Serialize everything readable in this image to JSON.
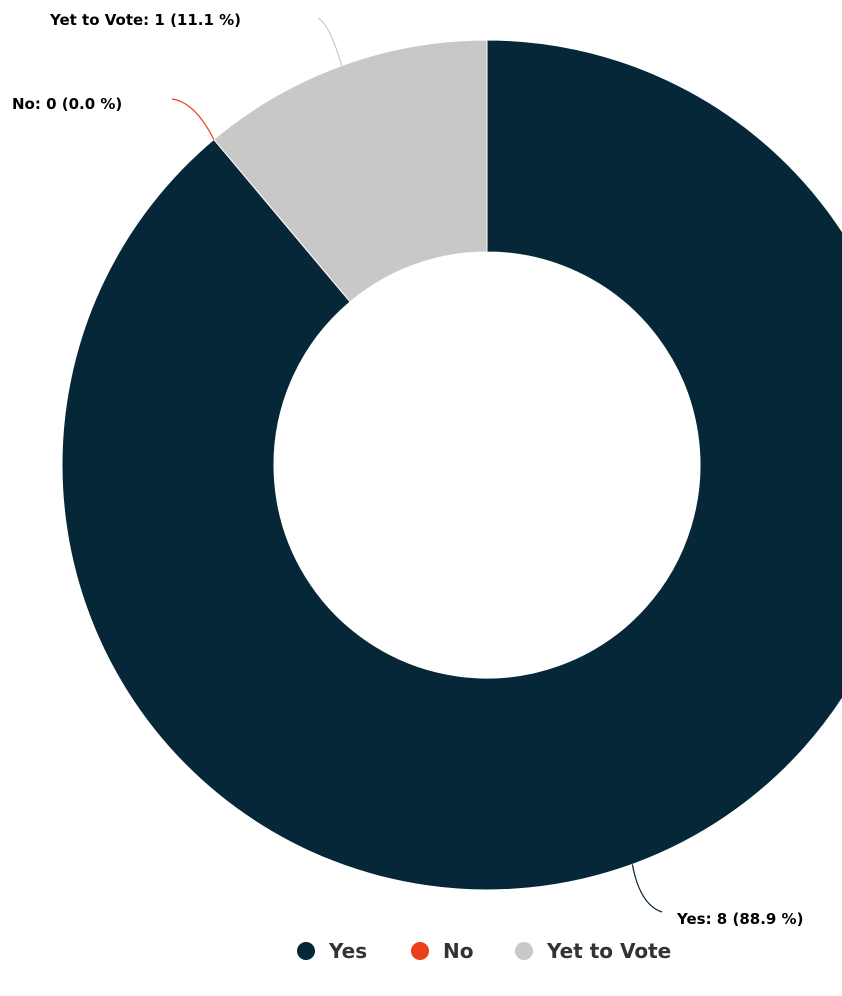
{
  "chart_data": {
    "type": "pie",
    "variant": "donut",
    "categories": [
      "Yes",
      "No",
      "Yet to Vote"
    ],
    "values": [
      8,
      0,
      1
    ],
    "percentages": [
      88.9,
      0.0,
      11.1
    ],
    "colors": [
      "#052737",
      "#e8401c",
      "#c8c8c8"
    ],
    "data_labels": [
      "Yes: 8 (88.9 %)",
      "No: 0 (0.0 %)",
      "Yet to Vote: 1 (11.1 %)"
    ],
    "legend": {
      "position": "bottom-center",
      "entries": [
        "Yes",
        "No",
        "Yet to Vote"
      ]
    }
  }
}
